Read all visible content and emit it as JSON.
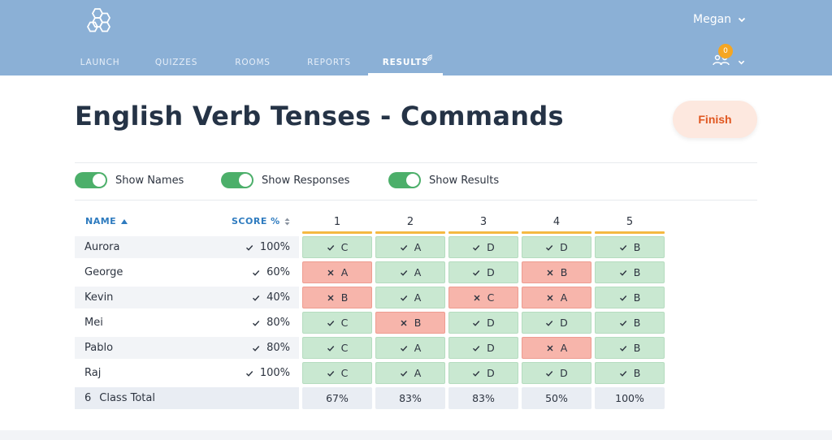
{
  "header": {
    "user_name": "Megan",
    "notification_count": "0",
    "nav": [
      {
        "label": "LAUNCH",
        "active": false
      },
      {
        "label": "QUIZZES",
        "active": false
      },
      {
        "label": "ROOMS",
        "active": false
      },
      {
        "label": "REPORTS",
        "active": false
      },
      {
        "label": "RESULTS",
        "active": true
      }
    ]
  },
  "page": {
    "title": "English Verb Tenses - Commands",
    "finish_label": "Finish"
  },
  "toggles": [
    {
      "label": "Show Names",
      "on": true
    },
    {
      "label": "Show Responses",
      "on": true
    },
    {
      "label": "Show Results",
      "on": true
    }
  ],
  "table": {
    "name_header": "NAME",
    "score_header": "SCORE %",
    "questions": [
      "1",
      "2",
      "3",
      "4",
      "5"
    ],
    "rows": [
      {
        "name": "Aurora",
        "score": "100%",
        "answers": [
          {
            "letter": "C",
            "correct": true
          },
          {
            "letter": "A",
            "correct": true
          },
          {
            "letter": "D",
            "correct": true
          },
          {
            "letter": "D",
            "correct": true
          },
          {
            "letter": "B",
            "correct": true
          }
        ]
      },
      {
        "name": "George",
        "score": "60%",
        "answers": [
          {
            "letter": "A",
            "correct": false
          },
          {
            "letter": "A",
            "correct": true
          },
          {
            "letter": "D",
            "correct": true
          },
          {
            "letter": "B",
            "correct": false
          },
          {
            "letter": "B",
            "correct": true
          }
        ]
      },
      {
        "name": "Kevin",
        "score": "40%",
        "answers": [
          {
            "letter": "B",
            "correct": false
          },
          {
            "letter": "A",
            "correct": true
          },
          {
            "letter": "C",
            "correct": false
          },
          {
            "letter": "A",
            "correct": false
          },
          {
            "letter": "B",
            "correct": true
          }
        ]
      },
      {
        "name": "Mei",
        "score": "80%",
        "answers": [
          {
            "letter": "C",
            "correct": true
          },
          {
            "letter": "B",
            "correct": false
          },
          {
            "letter": "D",
            "correct": true
          },
          {
            "letter": "D",
            "correct": true
          },
          {
            "letter": "B",
            "correct": true
          }
        ]
      },
      {
        "name": "Pablo",
        "score": "80%",
        "answers": [
          {
            "letter": "C",
            "correct": true
          },
          {
            "letter": "A",
            "correct": true
          },
          {
            "letter": "D",
            "correct": true
          },
          {
            "letter": "A",
            "correct": false
          },
          {
            "letter": "B",
            "correct": true
          }
        ]
      },
      {
        "name": "Raj",
        "score": "100%",
        "answers": [
          {
            "letter": "C",
            "correct": true
          },
          {
            "letter": "A",
            "correct": true
          },
          {
            "letter": "D",
            "correct": true
          },
          {
            "letter": "D",
            "correct": true
          },
          {
            "letter": "B",
            "correct": true
          }
        ]
      }
    ],
    "total": {
      "count": "6",
      "label": "Class Total",
      "percents": [
        "67%",
        "83%",
        "83%",
        "50%",
        "100%"
      ]
    }
  },
  "colors": {
    "header_bg": "#8bb0d6",
    "correct_bg": "#c9e8d1",
    "incorrect_bg": "#f7b5ab",
    "toggle_on": "#4caf6a",
    "finish_text": "#e0561f",
    "question_bar": "#f5b942"
  },
  "icons": [
    "hexagon-logo-icon",
    "chevron-down-icon",
    "wifi-icon",
    "people-icon",
    "check-icon",
    "x-icon",
    "sort-up-icon",
    "sort-updown-icon"
  ]
}
